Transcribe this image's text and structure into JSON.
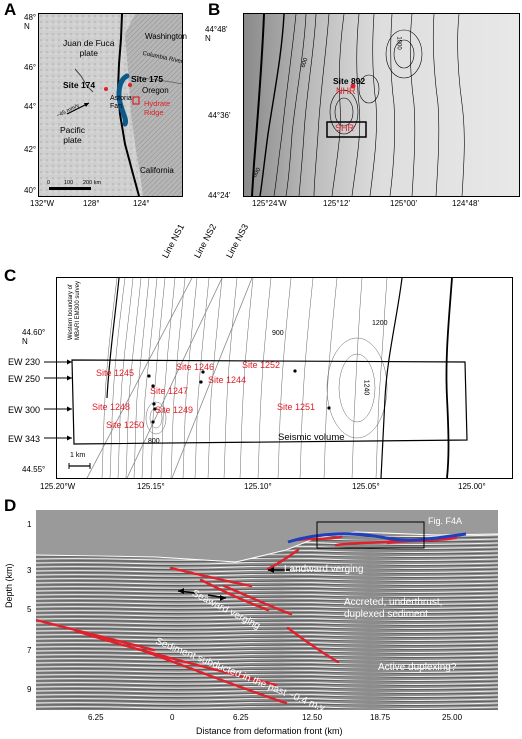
{
  "panelA": {
    "letter": "A",
    "lat_ticks": [
      "48°\nN",
      "46°",
      "44°",
      "42°",
      "40°"
    ],
    "lon_ticks": [
      "132°W",
      "128°",
      "124°"
    ],
    "labels": {
      "washington": "Washington",
      "oregon": "Oregon",
      "california": "California",
      "columbia_river": "Columbia River",
      "jdf_plate": "Juan de Fuca\nplate",
      "pacific_plate": "Pacific\nplate",
      "astoria_fan": "Astoria\nFan",
      "site174": "Site 174",
      "site175": "Site 175",
      "hydrate_ridge": "Hydrate\nRidge",
      "rate": "~45 mm/y",
      "scale": [
        "0",
        "100",
        "200 km"
      ]
    }
  },
  "panelB": {
    "letter": "B",
    "lat_ticks": [
      "44°48'\nN",
      "44°36'",
      "44°24'"
    ],
    "lon_ticks": [
      "125°24'W",
      "125°12'",
      "125°00'",
      "124°48'"
    ],
    "labels": {
      "site892": "Site 892",
      "nhr": "NHR",
      "shr": "SHR",
      "c1000": "1000",
      "c600a": "600",
      "c600b": "600"
    }
  },
  "panelC": {
    "letter": "C",
    "lat_ticks": [
      "44.60°\nN",
      "44.55°"
    ],
    "lon_ticks": [
      "125.20°W",
      "125.15°",
      "125.10°",
      "125.05°",
      "125.00°"
    ],
    "lines": [
      "Line NS1",
      "Line NS2",
      "Line NS3"
    ],
    "ew_lines": [
      "EW 230",
      "EW 250",
      "EW 300",
      "EW 343"
    ],
    "sites": [
      "Site 1245",
      "Site 1246",
      "Site 1252",
      "Site 1247",
      "Site 1244",
      "Site 1248",
      "Site 1249",
      "Site 1251",
      "Site 1250"
    ],
    "contours": [
      "900",
      "1200",
      "1240",
      "800"
    ],
    "survey_note": "Western boundary of\nMBARI EM300 survey",
    "seismic_volume": "Seismic volume",
    "scale": "1 km"
  },
  "panelD": {
    "letter": "D",
    "ylabel": "Depth (km)",
    "xlabel": "Distance from deformation front (km)",
    "yticks": [
      "1",
      "3",
      "5",
      "7",
      "9"
    ],
    "xticks": [
      "6.25",
      "0",
      "6.25",
      "12.50",
      "18.75",
      "25.00"
    ],
    "annotations": {
      "fig": "Fig. F4A",
      "landward": "Landward verging",
      "seaward": "Seaward verging",
      "accreted": "Accreted, underthrust,\nduplexed sediment",
      "subducted": "Sediment subducted in the past ~0.4 m.y.",
      "active": "Active duplexing?"
    }
  },
  "colors": {
    "red": "#e0202a",
    "blue": "#1f3fbf",
    "teal": "#0d5a8a"
  }
}
